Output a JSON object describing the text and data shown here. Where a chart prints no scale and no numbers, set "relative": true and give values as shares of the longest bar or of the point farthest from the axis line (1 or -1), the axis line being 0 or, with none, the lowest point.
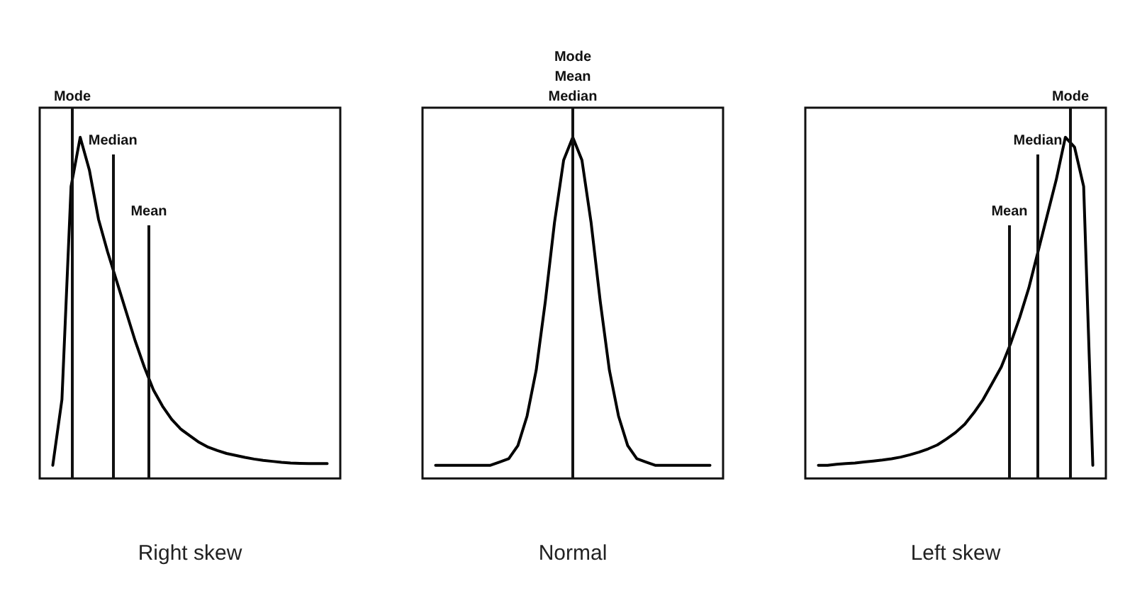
{
  "chart_data": [
    {
      "type": "line",
      "xlabel": "Right skew",
      "relative": true,
      "line_style": "solid",
      "categories": [
        null,
        null,
        null,
        null,
        null,
        null,
        null,
        null,
        null,
        null,
        null,
        null,
        null,
        null,
        null,
        null,
        null,
        null,
        null,
        null,
        null,
        null,
        null,
        null,
        null,
        null,
        null,
        null,
        null,
        null,
        null
      ],
      "series": [
        {
          "color": "#000000",
          "values": [
            0,
            0.2,
            0.85,
            1,
            0.9,
            0.75,
            0.65,
            0.56,
            0.47,
            0.38,
            0.3,
            0.23,
            0.18,
            0.14,
            0.11,
            0.09,
            0.07,
            0.055,
            0.045,
            0.036,
            0.03,
            0.024,
            0.019,
            0.015,
            0.012,
            0.009,
            0.007,
            0.006,
            0.005,
            0.005,
            0.005
          ]
        }
      ],
      "annotations": [
        "Mode",
        "Median",
        "Mean"
      ]
    },
    {
      "type": "line",
      "xlabel": "Normal",
      "relative": true,
      "line_style": "solid",
      "categories": [
        null,
        null,
        null,
        null,
        null,
        null,
        null,
        null,
        null,
        null,
        null,
        null,
        null,
        null,
        null,
        null,
        null,
        null,
        null,
        null,
        null,
        null,
        null,
        null,
        null,
        null,
        null,
        null,
        null,
        null,
        null
      ],
      "series": [
        {
          "color": "#000000",
          "values": [
            0,
            0,
            0,
            0,
            0,
            0,
            0,
            0.01,
            0.02,
            0.06,
            0.15,
            0.29,
            0.5,
            0.74,
            0.93,
            1,
            0.93,
            0.74,
            0.5,
            0.29,
            0.15,
            0.06,
            0.02,
            0.01,
            0,
            0,
            0,
            0,
            0,
            0,
            0
          ]
        }
      ],
      "annotations": [
        "Mode",
        "Mean",
        "Median"
      ]
    },
    {
      "type": "line",
      "xlabel": "Left skew",
      "relative": true,
      "line_style": "solid",
      "categories": [
        null,
        null,
        null,
        null,
        null,
        null,
        null,
        null,
        null,
        null,
        null,
        null,
        null,
        null,
        null,
        null,
        null,
        null,
        null,
        null,
        null,
        null,
        null,
        null,
        null,
        null,
        null,
        null,
        null,
        null,
        null
      ],
      "series": [
        {
          "color": "#000000",
          "values": [
            0,
            0,
            0.003,
            0.005,
            0.007,
            0.01,
            0.013,
            0.016,
            0.02,
            0.025,
            0.032,
            0.04,
            0.05,
            0.062,
            0.08,
            0.1,
            0.125,
            0.16,
            0.2,
            0.25,
            0.3,
            0.37,
            0.45,
            0.54,
            0.65,
            0.76,
            0.87,
            1,
            0.97,
            0.85,
            0
          ]
        }
      ],
      "annotations": [
        "Mode",
        "Median",
        "Mean"
      ]
    }
  ]
}
